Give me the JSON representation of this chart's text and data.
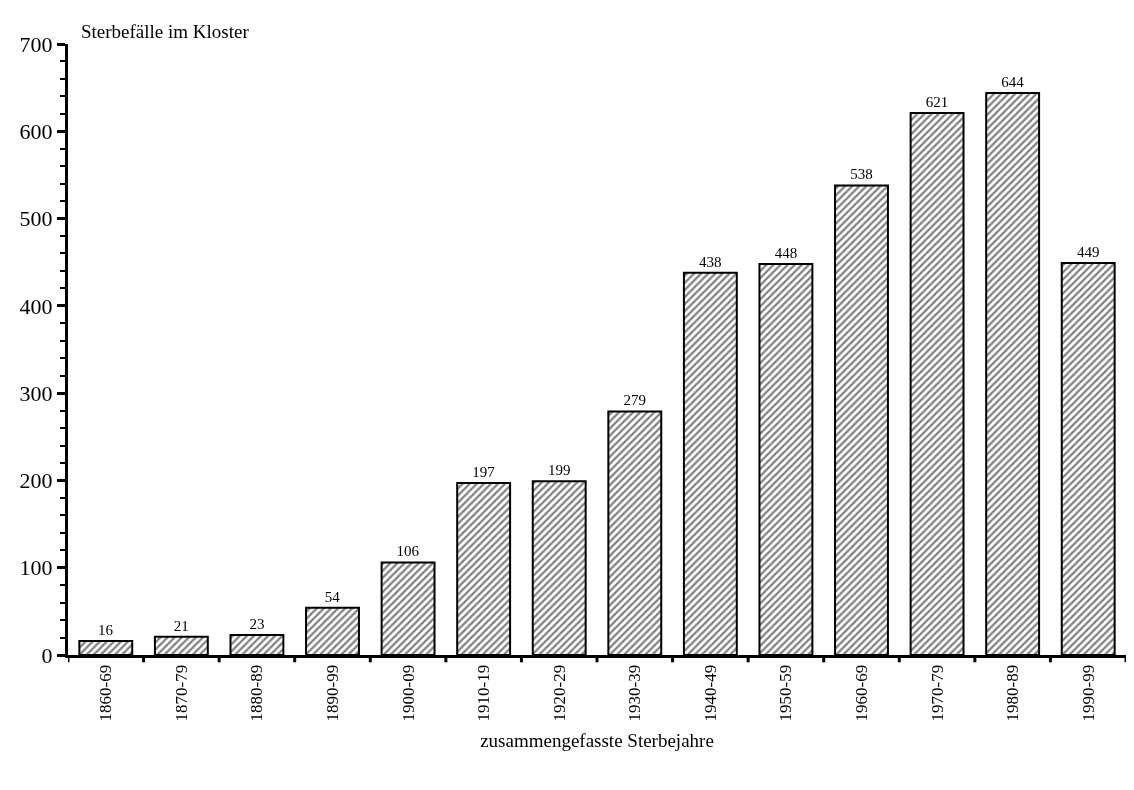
{
  "chart_data": {
    "type": "bar",
    "xlabel": "zusammengefasste Sterbejahre",
    "ylabel": "Sterbefälle im Kloster",
    "categories": [
      "1860-69",
      "1870-79",
      "1880-89",
      "1890-99",
      "1900-09",
      "1910-19",
      "1920-29",
      "1930-39",
      "1940-49",
      "1950-59",
      "1960-69",
      "1970-79",
      "1980-89",
      "1990-99"
    ],
    "values": [
      16,
      21,
      23,
      54,
      106,
      197,
      199,
      279,
      438,
      448,
      538,
      621,
      644,
      449
    ],
    "color": "#000000",
    "data_labels": true,
    "ylim": [
      0,
      700
    ],
    "yticks": [
      0,
      100,
      200,
      300,
      400,
      500,
      600,
      700
    ]
  }
}
